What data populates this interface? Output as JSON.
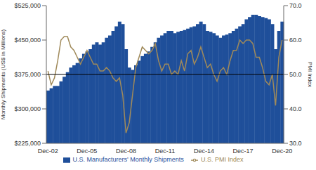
{
  "chart_data": {
    "type": "bar",
    "categories": [
      "Dec-02",
      null,
      null,
      null,
      null,
      null,
      null,
      null,
      null,
      null,
      null,
      null,
      "Dec-05",
      null,
      null,
      null,
      null,
      null,
      null,
      null,
      null,
      null,
      null,
      null,
      "Dec-08",
      null,
      null,
      null,
      null,
      null,
      null,
      null,
      null,
      null,
      null,
      null,
      "Dec-11",
      null,
      null,
      null,
      null,
      null,
      null,
      null,
      null,
      null,
      null,
      null,
      "Dec-14",
      null,
      null,
      null,
      null,
      null,
      null,
      null,
      null,
      null,
      null,
      null,
      "Dec-17",
      null,
      null,
      null,
      null,
      null,
      null,
      null,
      null,
      null,
      null,
      null,
      "Dec-20"
    ],
    "series": [
      {
        "name": "U.S. Manufacturers' Monthly Shipments",
        "type": "bar",
        "color": "#1f4f9a",
        "values": [
          340000,
          345000,
          350000,
          350000,
          360000,
          370000,
          380000,
          390000,
          395000,
          400000,
          410000,
          420000,
          425000,
          430000,
          440000,
          445000,
          440000,
          445000,
          455000,
          460000,
          470000,
          480000,
          490000,
          485000,
          430000,
          390000,
          385000,
          395000,
          405000,
          415000,
          420000,
          425000,
          435000,
          445000,
          455000,
          460000,
          465000,
          470000,
          470000,
          465000,
          468000,
          470000,
          472000,
          475000,
          478000,
          480000,
          485000,
          490000,
          485000,
          470000,
          468000,
          465000,
          460000,
          455000,
          460000,
          462000,
          465000,
          470000,
          475000,
          480000,
          485000,
          495000,
          500000,
          505000,
          505000,
          502000,
          500000,
          498000,
          495000,
          485000,
          430000,
          470000,
          490000
        ]
      },
      {
        "name": "U.S. PMI Index",
        "type": "line",
        "axis": "y2",
        "color": "#a08a5a",
        "values": [
          51,
          47,
          49,
          54,
          60,
          61,
          61,
          58,
          57,
          55,
          53,
          55,
          57,
          55,
          53,
          53,
          51,
          51,
          52,
          51,
          49,
          48,
          49,
          44,
          33,
          36,
          44,
          52,
          55,
          58,
          57,
          56,
          57,
          59,
          54,
          51,
          53,
          53,
          50,
          51,
          50,
          54,
          51,
          56,
          57,
          53,
          55,
          58,
          55,
          52,
          53,
          50,
          48,
          51,
          52,
          50,
          54,
          57,
          57,
          60,
          59,
          60,
          60,
          59,
          55,
          55,
          52,
          48,
          47,
          50,
          41,
          55,
          60
        ]
      }
    ],
    "ylabel": "Monthly Shipments (US$ in Millions)",
    "y2label": "PMI Index",
    "ylim": [
      225000,
      525000
    ],
    "yticks": [
      {
        "value": 225000,
        "label": "$225,000"
      },
      {
        "value": 300000,
        "label": "$300,000"
      },
      {
        "value": 375000,
        "label": "$375,000"
      },
      {
        "value": 450000,
        "label": "$450,000"
      },
      {
        "value": 525000,
        "label": "$525,000"
      }
    ],
    "y2lim": [
      30,
      70
    ],
    "y2ticks": [
      {
        "value": 30,
        "label": "30.0"
      },
      {
        "value": 40,
        "label": "40.0"
      },
      {
        "value": 50,
        "label": "50.0"
      },
      {
        "value": 60,
        "label": "60.0"
      },
      {
        "value": 70,
        "label": "70.0"
      }
    ],
    "y2_reference": 50,
    "legend": "bottom",
    "grid": false
  }
}
